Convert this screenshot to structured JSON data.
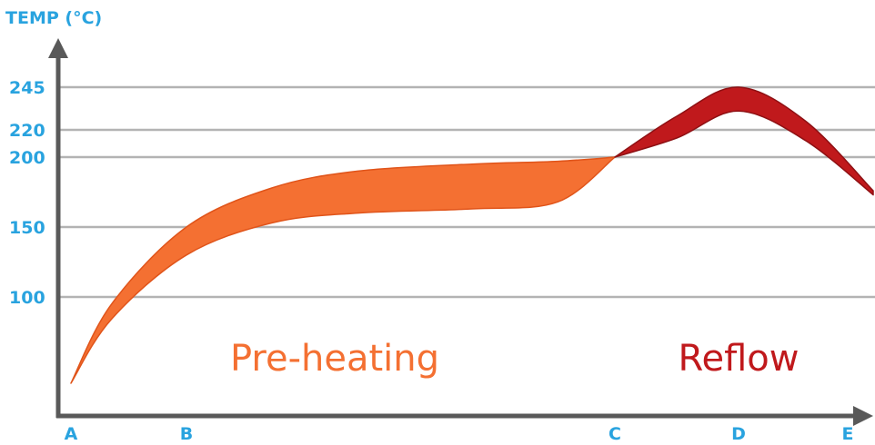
{
  "chart_data": {
    "type": "area",
    "ylabel": "TEMP (°C)",
    "xlabel": "",
    "title": "",
    "y_ticks": [
      100,
      150,
      200,
      220,
      245
    ],
    "grid": true,
    "x_ticks": [
      {
        "label": "A",
        "x": 0
      },
      {
        "label": "B",
        "x": 1
      },
      {
        "label": "C",
        "x": 4
      },
      {
        "label": "D",
        "x": 5
      },
      {
        "label": "E",
        "x": 6
      }
    ],
    "regions": [
      {
        "name": "Pre-heating",
        "color": "#F47032"
      },
      {
        "name": "Reflow",
        "color": "#C0191C"
      }
    ],
    "series": [
      {
        "name": "Pre-heating",
        "upper": [
          [
            0,
            42
          ],
          [
            0.35,
            95
          ],
          [
            1,
            150
          ],
          [
            1.6,
            178
          ],
          [
            2.2,
            190
          ],
          [
            3,
            195
          ],
          [
            3.6,
            197
          ],
          [
            4,
            200
          ]
        ],
        "lower": [
          [
            0,
            42
          ],
          [
            0.35,
            85
          ],
          [
            1,
            130
          ],
          [
            1.6,
            153
          ],
          [
            2.2,
            160
          ],
          [
            3,
            163
          ],
          [
            3.6,
            168
          ],
          [
            4,
            200
          ]
        ]
      },
      {
        "name": "Reflow",
        "upper": [
          [
            4,
            200
          ],
          [
            4.5,
            228
          ],
          [
            5,
            245
          ],
          [
            5.5,
            225
          ],
          [
            6,
            176
          ]
        ],
        "lower": [
          [
            4,
            200
          ],
          [
            4.5,
            214
          ],
          [
            5,
            231
          ],
          [
            5.5,
            212
          ],
          [
            6,
            173
          ]
        ]
      }
    ]
  },
  "colors": {
    "axis": "#595959",
    "grid": "#b3b3b3",
    "label_blue": "#29A3DF",
    "preheat": "#F47032",
    "preheat_edge": "#E0541A",
    "reflow": "#C0191C",
    "reflow_edge": "#8E1013"
  }
}
